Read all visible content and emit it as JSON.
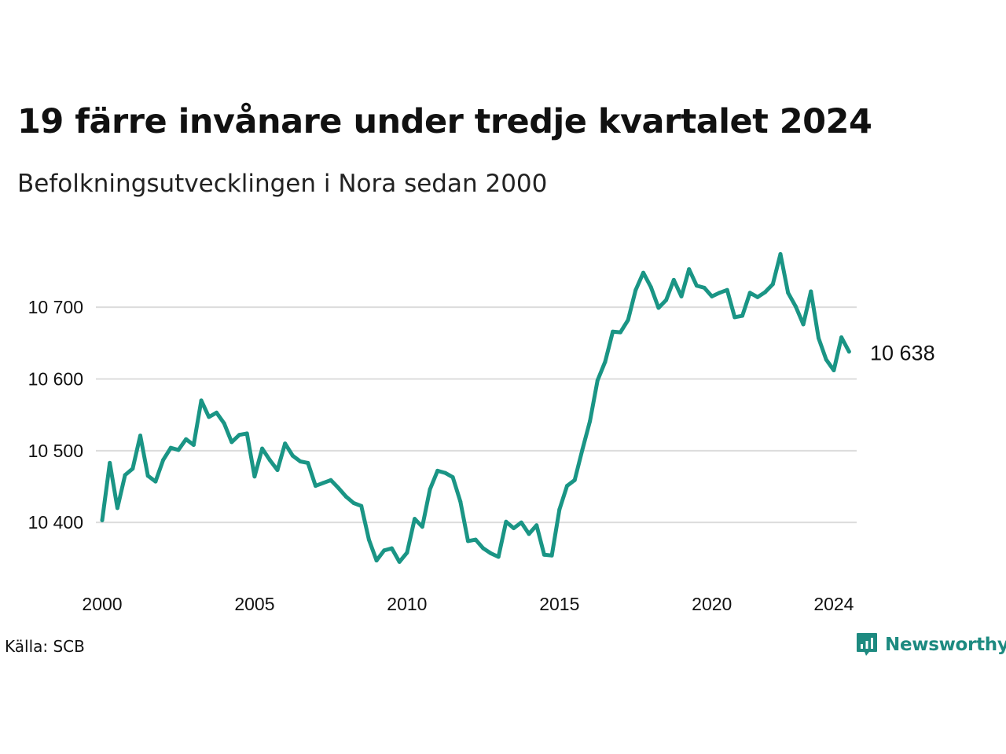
{
  "header": {
    "title": "19 färre invånare under tredje kvartalet 2024",
    "subtitle": "Befolkningsutvecklingen i Nora sedan 2000"
  },
  "footer": {
    "source": "Källa: SCB",
    "brand": "Newsworthy"
  },
  "colors": {
    "line": "#1a9585",
    "grid": "#dcdcdc",
    "brand": "#1d8a80"
  },
  "chart_data": {
    "type": "line",
    "x_tick_labels": [
      "2000",
      "2005",
      "2010",
      "2015",
      "2020",
      "2024"
    ],
    "x_ticks": [
      2000,
      2005,
      2010,
      2015,
      2020,
      2024
    ],
    "y_ticks": [
      10400,
      10500,
      10600,
      10700
    ],
    "y_tick_labels": [
      "10 400",
      "10 500",
      "10 600",
      "10 700"
    ],
    "xlim": [
      2000,
      2024.75
    ],
    "ylim": [
      10340,
      10780
    ],
    "grid": true,
    "end_label": "10 638",
    "series": [
      {
        "x": [
          2000.0,
          2000.25,
          2000.5,
          2000.75,
          2001.0,
          2001.25,
          2001.5,
          2001.75,
          2002.0,
          2002.25,
          2002.5,
          2002.75,
          2003.0,
          2003.25,
          2003.5,
          2003.75,
          2004.0,
          2004.25,
          2004.5,
          2004.75,
          2005.0,
          2005.25,
          2005.5,
          2005.75,
          2006.0,
          2006.25,
          2006.5,
          2006.75,
          2007.0,
          2007.25,
          2007.5,
          2007.75,
          2008.0,
          2008.25,
          2008.5,
          2008.75,
          2009.0,
          2009.25,
          2009.5,
          2009.75,
          2010.0,
          2010.25,
          2010.5,
          2010.75,
          2011.0,
          2011.25,
          2011.5,
          2011.75,
          2012.0,
          2012.25,
          2012.5,
          2012.75,
          2013.0,
          2013.25,
          2013.5,
          2013.75,
          2014.0,
          2014.25,
          2014.5,
          2014.75,
          2015.0,
          2015.25,
          2015.5,
          2015.75,
          2016.0,
          2016.25,
          2016.5,
          2016.75,
          2017.0,
          2017.25,
          2017.5,
          2017.75,
          2018.0,
          2018.25,
          2018.5,
          2018.75,
          2019.0,
          2019.25,
          2019.5,
          2019.75,
          2020.0,
          2020.25,
          2020.5,
          2020.75,
          2021.0,
          2021.25,
          2021.5,
          2021.75,
          2022.0,
          2022.25,
          2022.5,
          2022.75,
          2023.0,
          2023.25,
          2023.5,
          2023.75,
          2024.0,
          2024.25,
          2024.5
        ],
        "values": [
          10403,
          10483,
          10420,
          10466,
          10475,
          10521,
          10465,
          10457,
          10487,
          10504,
          10501,
          10516,
          10508,
          10570,
          10547,
          10553,
          10538,
          10512,
          10522,
          10524,
          10464,
          10503,
          10487,
          10473,
          10510,
          10493,
          10485,
          10483,
          10451,
          10455,
          10459,
          10448,
          10436,
          10427,
          10423,
          10376,
          10347,
          10361,
          10364,
          10345,
          10358,
          10405,
          10394,
          10446,
          10472,
          10469,
          10463,
          10429,
          10374,
          10376,
          10364,
          10357,
          10352,
          10401,
          10392,
          10400,
          10384,
          10396,
          10355,
          10354,
          10418,
          10451,
          10459,
          10501,
          10541,
          10598,
          10624,
          10666,
          10665,
          10682,
          10724,
          10748,
          10728,
          10699,
          10710,
          10738,
          10715,
          10753,
          10730,
          10727,
          10715,
          10720,
          10724,
          10686,
          10688,
          10720,
          10714,
          10721,
          10732,
          10774,
          10720,
          10701,
          10676,
          10722,
          10657,
          10627,
          10612,
          10658,
          10638
        ]
      }
    ]
  }
}
